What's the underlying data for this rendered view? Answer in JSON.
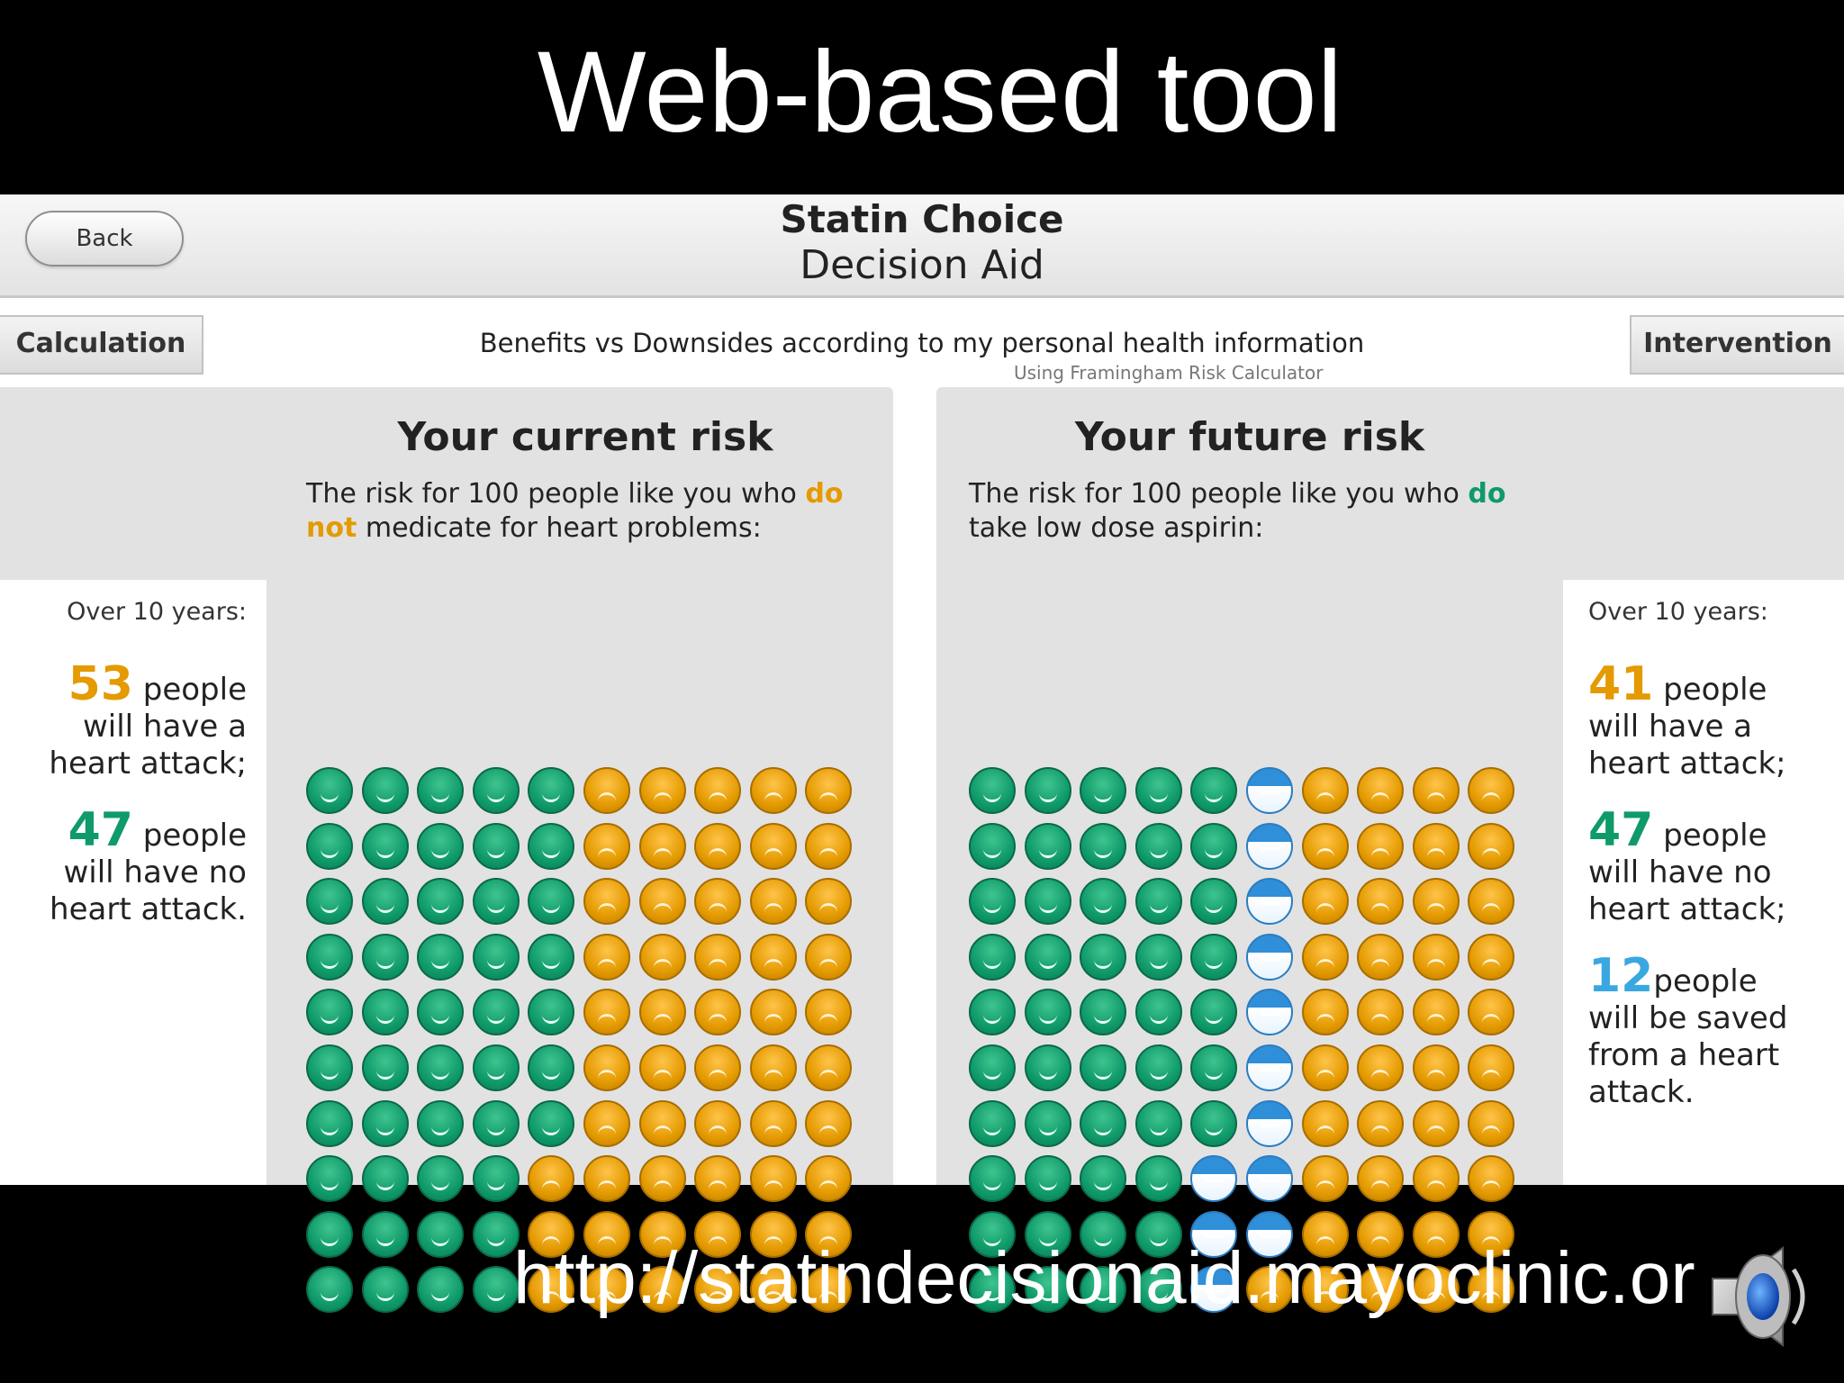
{
  "slide": {
    "title": "Web-based tool",
    "url": "http://statindecisionaid.mayoclinic.or"
  },
  "app": {
    "back_label": "Back",
    "title_line1": "Statin Choice",
    "title_line2": "Decision Aid",
    "tab_left": "Calculation",
    "tab_right": "Intervention",
    "subtitle": "Benefits vs Downsides according to my personal health information",
    "subnote": "Using Framingham Risk Calculator"
  },
  "current": {
    "title": "Your current risk",
    "desc_pre": "The risk for 100 people like you who ",
    "desc_hl1": "do",
    "desc_br": " ",
    "desc_hl2": "not",
    "desc_post": " medicate for heart problems:",
    "over": "Over 10 years:",
    "stat1_num": "53",
    "stat1_word": " people",
    "stat1_rest1": "will have a",
    "stat1_rest2": "heart attack;",
    "stat2_num": "47",
    "stat2_word": " people",
    "stat2_rest1": "will have no",
    "stat2_rest2": "heart attack."
  },
  "future": {
    "title": "Your future risk",
    "desc_pre": "The risk for 100 people like you who ",
    "desc_hl": "do",
    "desc_post": "take low dose aspirin:",
    "over": "Over 10 years:",
    "stat1_num": "41",
    "stat1_word": " people",
    "stat1_rest1": "will have a",
    "stat1_rest2": "heart attack;",
    "stat2_num": "47",
    "stat2_word": " people",
    "stat2_rest1": "will have no",
    "stat2_rest2": "heart attack;",
    "stat3_num": "12",
    "stat3_word": "people",
    "stat3_rest1": "will be saved",
    "stat3_rest2": "from a heart",
    "stat3_rest3": "attack."
  },
  "colors": {
    "green": "#0f9a6a",
    "orange": "#e49a00",
    "blue": "#5bb8ee"
  },
  "icon_grid": {
    "current_counts": {
      "green_no_attack": 47,
      "orange_attack": 53
    },
    "future_counts": {
      "green_no_attack": 47,
      "blue_saved": 12,
      "orange_attack": 41
    },
    "current_green_per_row": [
      5,
      5,
      5,
      5,
      5,
      5,
      5,
      4,
      4,
      4
    ],
    "future_green_per_row": [
      5,
      5,
      5,
      5,
      5,
      5,
      5,
      4,
      4,
      4
    ],
    "future_blue_per_row": [
      1,
      1,
      1,
      1,
      1,
      1,
      1,
      2,
      2,
      1
    ]
  }
}
